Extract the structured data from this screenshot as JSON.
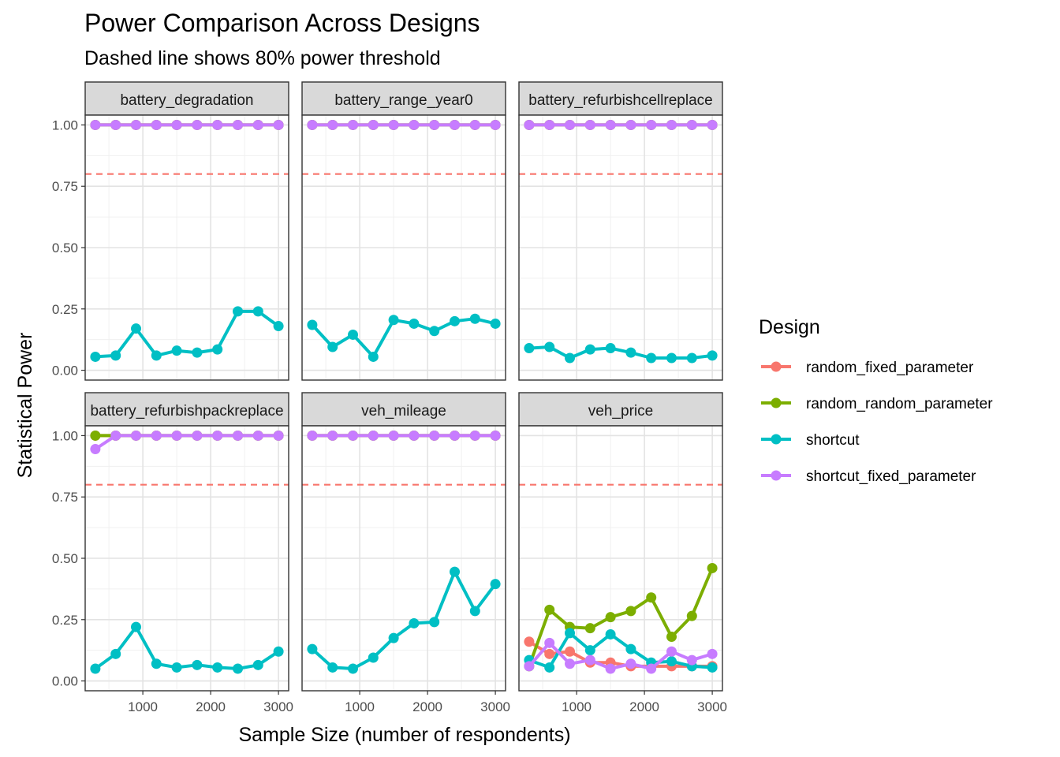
{
  "chart_data": {
    "type": "line",
    "title": "Power Comparison Across Designs",
    "subtitle": "Dashed line shows 80% power threshold",
    "xlabel": "Sample Size (number of respondents)",
    "ylabel": "Statistical Power",
    "xlim": [
      150,
      3150
    ],
    "ylim": [
      -0.04,
      1.04
    ],
    "x_ticks": [
      1000,
      2000,
      3000
    ],
    "y_ticks": [
      0,
      0.25,
      0.5,
      0.75,
      1
    ],
    "y_tick_labels": [
      "0.00",
      "0.25",
      "0.50",
      "0.75",
      "1.00"
    ],
    "threshold": 0.8,
    "threshold_color": "#F8766D",
    "grid": true,
    "legend_position": "right",
    "legend_title": "Design",
    "x": [
      300,
      600,
      900,
      1200,
      1500,
      1800,
      2100,
      2400,
      2700,
      3000
    ],
    "series_styles": [
      {
        "name": "random_fixed_parameter",
        "color": "#F8766D"
      },
      {
        "name": "random_random_parameter",
        "color": "#7CAE00"
      },
      {
        "name": "shortcut",
        "color": "#00BFC4"
      },
      {
        "name": "shortcut_fixed_parameter",
        "color": "#C77CFF"
      }
    ],
    "panels": [
      {
        "title": "battery_degradation",
        "series": [
          {
            "name": "random_fixed_parameter",
            "values": [
              1,
              1,
              1,
              1,
              1,
              1,
              1,
              1,
              1,
              1
            ]
          },
          {
            "name": "random_random_parameter",
            "values": [
              1,
              1,
              1,
              1,
              1,
              1,
              1,
              1,
              1,
              1
            ]
          },
          {
            "name": "shortcut",
            "values": [
              0.055,
              0.06,
              0.17,
              0.06,
              0.08,
              0.072,
              0.085,
              0.24,
              0.24,
              0.18
            ]
          },
          {
            "name": "shortcut_fixed_parameter",
            "values": [
              1,
              1,
              1,
              1,
              1,
              1,
              1,
              1,
              1,
              1
            ]
          }
        ]
      },
      {
        "title": "battery_range_year0",
        "series": [
          {
            "name": "random_fixed_parameter",
            "values": [
              1,
              1,
              1,
              1,
              1,
              1,
              1,
              1,
              1,
              1
            ]
          },
          {
            "name": "random_random_parameter",
            "values": [
              1,
              1,
              1,
              1,
              1,
              1,
              1,
              1,
              1,
              1
            ]
          },
          {
            "name": "shortcut",
            "values": [
              0.185,
              0.095,
              0.145,
              0.055,
              0.205,
              0.19,
              0.16,
              0.2,
              0.21,
              0.19
            ]
          },
          {
            "name": "shortcut_fixed_parameter",
            "values": [
              1,
              1,
              1,
              1,
              1,
              1,
              1,
              1,
              1,
              1
            ]
          }
        ]
      },
      {
        "title": "battery_refurbishcellreplace",
        "series": [
          {
            "name": "random_fixed_parameter",
            "values": [
              1,
              1,
              1,
              1,
              1,
              1,
              1,
              1,
              1,
              1
            ]
          },
          {
            "name": "random_random_parameter",
            "values": [
              1,
              1,
              1,
              1,
              1,
              1,
              1,
              1,
              1,
              1
            ]
          },
          {
            "name": "shortcut",
            "values": [
              0.09,
              0.095,
              0.05,
              0.085,
              0.09,
              0.072,
              0.05,
              0.05,
              0.05,
              0.06
            ]
          },
          {
            "name": "shortcut_fixed_parameter",
            "values": [
              1,
              1,
              1,
              1,
              1,
              1,
              1,
              1,
              1,
              1
            ]
          }
        ]
      },
      {
        "title": "battery_refurbishpackreplace",
        "series": [
          {
            "name": "random_fixed_parameter",
            "values": [
              1,
              1,
              1,
              1,
              1,
              1,
              1,
              1,
              1,
              1
            ]
          },
          {
            "name": "random_random_parameter",
            "values": [
              1,
              1,
              1,
              1,
              1,
              1,
              1,
              1,
              1,
              1
            ]
          },
          {
            "name": "shortcut",
            "values": [
              0.05,
              0.11,
              0.22,
              0.07,
              0.055,
              0.065,
              0.055,
              0.05,
              0.065,
              0.12
            ]
          },
          {
            "name": "shortcut_fixed_parameter",
            "values": [
              0.945,
              1,
              1,
              1,
              1,
              1,
              1,
              1,
              1,
              1
            ]
          }
        ]
      },
      {
        "title": "veh_mileage",
        "series": [
          {
            "name": "random_fixed_parameter",
            "values": [
              1,
              1,
              1,
              1,
              1,
              1,
              1,
              1,
              1,
              1
            ]
          },
          {
            "name": "random_random_parameter",
            "values": [
              1,
              1,
              1,
              1,
              1,
              1,
              1,
              1,
              1,
              1
            ]
          },
          {
            "name": "shortcut",
            "values": [
              0.13,
              0.055,
              0.05,
              0.095,
              0.175,
              0.235,
              0.24,
              0.445,
              0.285,
              0.395
            ]
          },
          {
            "name": "shortcut_fixed_parameter",
            "values": [
              1,
              1,
              1,
              1,
              1,
              1,
              1,
              1,
              1,
              1
            ]
          }
        ]
      },
      {
        "title": "veh_price",
        "series": [
          {
            "name": "random_fixed_parameter",
            "values": [
              0.16,
              0.11,
              0.12,
              0.075,
              0.075,
              0.06,
              0.06,
              0.06,
              0.06,
              0.06
            ]
          },
          {
            "name": "random_random_parameter",
            "values": [
              0.06,
              0.29,
              0.22,
              0.215,
              0.26,
              0.285,
              0.34,
              0.18,
              0.265,
              0.46
            ]
          },
          {
            "name": "shortcut",
            "values": [
              0.085,
              0.055,
              0.195,
              0.125,
              0.19,
              0.13,
              0.075,
              0.08,
              0.06,
              0.055
            ]
          },
          {
            "name": "shortcut_fixed_parameter",
            "values": [
              0.06,
              0.155,
              0.07,
              0.085,
              0.05,
              0.07,
              0.05,
              0.12,
              0.085,
              0.11
            ]
          }
        ]
      }
    ]
  }
}
